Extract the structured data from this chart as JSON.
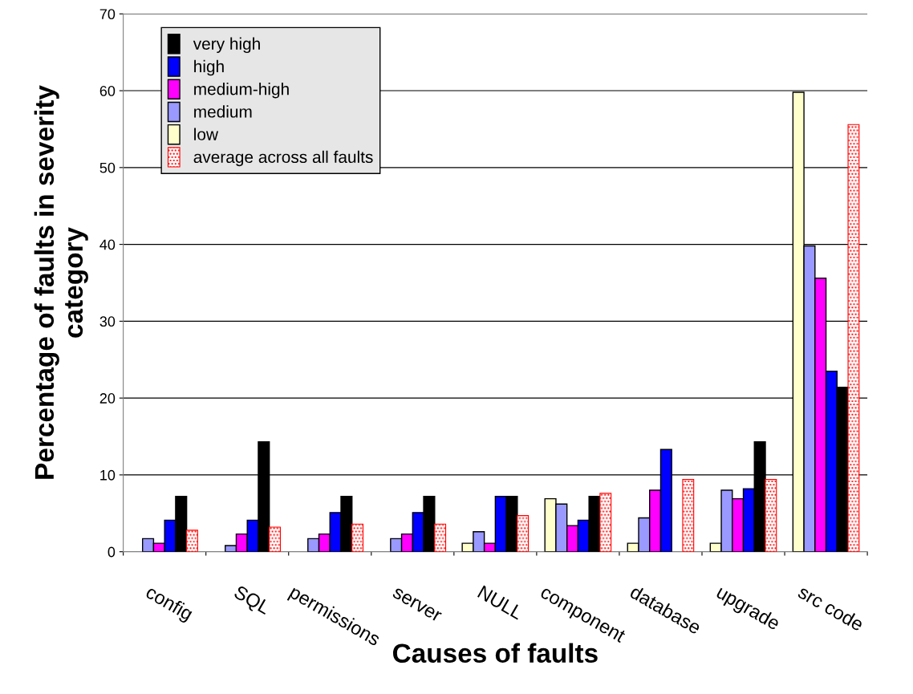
{
  "chart_data": {
    "type": "bar",
    "xlabel": "Causes of faults",
    "ylabel": "Percentage of faults in severity\ncategory",
    "categories": [
      "config",
      "SQL",
      "permissions",
      "server",
      "NULL",
      "component",
      "database",
      "upgrade",
      "src code"
    ],
    "series": [
      {
        "name": "low",
        "color": "#ffffcc",
        "values": [
          null,
          null,
          null,
          null,
          1.1,
          6.9,
          1.1,
          1.1,
          59.8
        ]
      },
      {
        "name": "medium",
        "color": "#9999ff",
        "values": [
          1.7,
          0.8,
          1.7,
          1.7,
          2.6,
          6.2,
          4.4,
          8.0,
          39.8
        ]
      },
      {
        "name": "medium-high",
        "color": "#ff00ff",
        "values": [
          1.1,
          2.3,
          2.3,
          2.3,
          1.1,
          3.4,
          8.0,
          6.9,
          35.6
        ]
      },
      {
        "name": "high",
        "color": "#0000ff",
        "values": [
          4.1,
          4.1,
          5.1,
          5.1,
          7.2,
          4.1,
          13.3,
          8.2,
          23.5
        ]
      },
      {
        "name": "very high",
        "color": "#000000",
        "values": [
          7.2,
          14.3,
          7.2,
          7.2,
          7.2,
          7.2,
          null,
          14.3,
          21.4
        ]
      },
      {
        "name": "average across all faults",
        "color": "#ff0000",
        "values": [
          2.8,
          3.2,
          3.6,
          3.6,
          4.7,
          7.6,
          9.4,
          9.4,
          55.6
        ]
      }
    ],
    "ylim": [
      0,
      70
    ],
    "yticks": [
      0,
      10,
      20,
      30,
      40,
      50,
      60,
      70
    ],
    "grid": "y",
    "legend": "top left"
  }
}
